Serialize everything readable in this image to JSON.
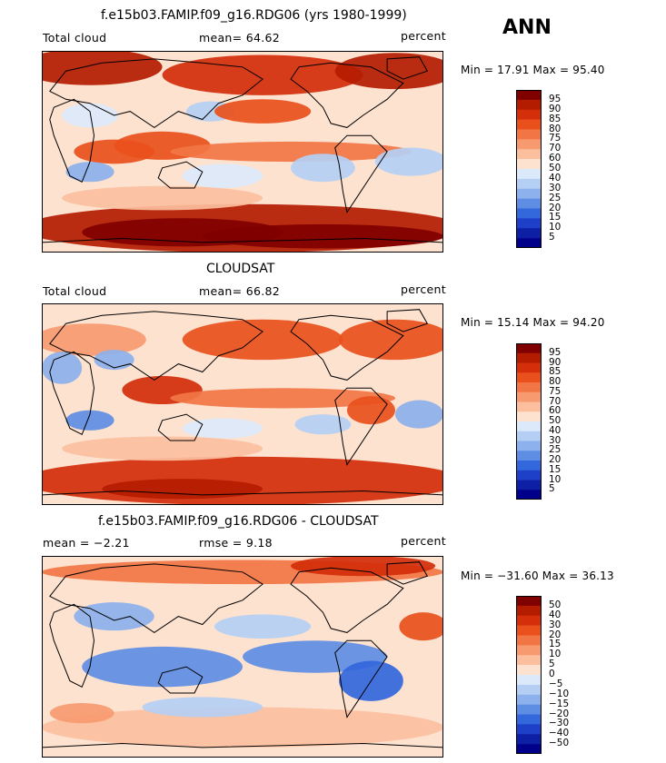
{
  "season_label": "ANN",
  "chart_data": [
    {
      "type": "heatmap",
      "title": "f.e15b03.FAMIP.f09_g16.RDG06 (yrs 1980-1999)",
      "variable": "Total cloud",
      "stat_text": "mean=   64.62",
      "units": "percent",
      "minmax_text": "Min =  17.91 Max =  95.40",
      "stats": {
        "mean": 64.62,
        "min": 17.91,
        "max": 95.4
      },
      "levels": [
        "95",
        "90",
        "85",
        "80",
        "75",
        "70",
        "60",
        "50",
        "40",
        "30",
        "25",
        "20",
        "15",
        "10",
        "5"
      ],
      "colors": [
        "#800000",
        "#b41c00",
        "#d42e0a",
        "#e9501c",
        "#f27645",
        "#f79a70",
        "#fbbf9e",
        "#fde2d0",
        "#dce9fb",
        "#b5cff4",
        "#8cb1ec",
        "#5e8ee3",
        "#3367dc",
        "#1e40c9",
        "#0d1fa5",
        "#00008a"
      ],
      "fields": [
        {
          "cx": 0.12,
          "cy": 0.08,
          "rx": 0.18,
          "ry": 0.09,
          "c": 1
        },
        {
          "cx": 0.55,
          "cy": 0.12,
          "rx": 0.25,
          "ry": 0.1,
          "c": 2
        },
        {
          "cx": 0.88,
          "cy": 0.1,
          "rx": 0.15,
          "ry": 0.09,
          "c": 1
        },
        {
          "cx": 0.5,
          "cy": 0.88,
          "rx": 0.55,
          "ry": 0.12,
          "c": 1
        },
        {
          "cx": 0.35,
          "cy": 0.9,
          "rx": 0.25,
          "ry": 0.07,
          "c": 0
        },
        {
          "cx": 0.7,
          "cy": 0.92,
          "rx": 0.3,
          "ry": 0.06,
          "c": 0
        },
        {
          "cx": 0.3,
          "cy": 0.47,
          "rx": 0.12,
          "ry": 0.07,
          "c": 3
        },
        {
          "cx": 0.62,
          "cy": 0.5,
          "rx": 0.3,
          "ry": 0.05,
          "c": 4
        },
        {
          "cx": 0.18,
          "cy": 0.5,
          "rx": 0.1,
          "ry": 0.06,
          "c": 3
        },
        {
          "cx": 0.7,
          "cy": 0.58,
          "rx": 0.08,
          "ry": 0.07,
          "c": 9
        },
        {
          "cx": 0.92,
          "cy": 0.55,
          "rx": 0.09,
          "ry": 0.07,
          "c": 9
        },
        {
          "cx": 0.12,
          "cy": 0.6,
          "rx": 0.06,
          "ry": 0.05,
          "c": 10
        },
        {
          "cx": 0.45,
          "cy": 0.62,
          "rx": 0.1,
          "ry": 0.06,
          "c": 8
        },
        {
          "cx": 0.42,
          "cy": 0.3,
          "rx": 0.06,
          "ry": 0.05,
          "c": 9
        },
        {
          "cx": 0.12,
          "cy": 0.32,
          "rx": 0.07,
          "ry": 0.06,
          "c": 8
        },
        {
          "cx": 0.55,
          "cy": 0.3,
          "rx": 0.12,
          "ry": 0.06,
          "c": 3
        },
        {
          "cx": 0.3,
          "cy": 0.73,
          "rx": 0.25,
          "ry": 0.06,
          "c": 6
        }
      ]
    },
    {
      "type": "heatmap",
      "title": "CLOUDSAT",
      "variable": "Total cloud",
      "stat_text": "mean=   66.82",
      "units": "percent",
      "minmax_text": "Min =  15.14 Max =  94.20",
      "stats": {
        "mean": 66.82,
        "min": 15.14,
        "max": 94.2
      },
      "levels": [
        "95",
        "90",
        "85",
        "80",
        "75",
        "70",
        "60",
        "50",
        "40",
        "30",
        "25",
        "20",
        "15",
        "10",
        "5"
      ],
      "colors": [
        "#800000",
        "#b41c00",
        "#d42e0a",
        "#e9501c",
        "#f27645",
        "#f79a70",
        "#fbbf9e",
        "#fde2d0",
        "#dce9fb",
        "#b5cff4",
        "#8cb1ec",
        "#5e8ee3",
        "#3367dc",
        "#1e40c9",
        "#0d1fa5",
        "#00008a"
      ],
      "fields": [
        {
          "cx": 0.55,
          "cy": 0.18,
          "rx": 0.2,
          "ry": 0.1,
          "c": 3
        },
        {
          "cx": 0.88,
          "cy": 0.18,
          "rx": 0.14,
          "ry": 0.1,
          "c": 3
        },
        {
          "cx": 0.12,
          "cy": 0.18,
          "rx": 0.14,
          "ry": 0.08,
          "c": 5
        },
        {
          "cx": 0.5,
          "cy": 0.88,
          "rx": 0.55,
          "ry": 0.12,
          "c": 2
        },
        {
          "cx": 0.35,
          "cy": 0.92,
          "rx": 0.2,
          "ry": 0.05,
          "c": 1
        },
        {
          "cx": 0.3,
          "cy": 0.43,
          "rx": 0.1,
          "ry": 0.07,
          "c": 2
        },
        {
          "cx": 0.6,
          "cy": 0.47,
          "rx": 0.28,
          "ry": 0.05,
          "c": 4
        },
        {
          "cx": 0.82,
          "cy": 0.53,
          "rx": 0.06,
          "ry": 0.07,
          "c": 3
        },
        {
          "cx": 0.05,
          "cy": 0.32,
          "rx": 0.05,
          "ry": 0.08,
          "c": 10
        },
        {
          "cx": 0.12,
          "cy": 0.58,
          "rx": 0.06,
          "ry": 0.05,
          "c": 11
        },
        {
          "cx": 0.94,
          "cy": 0.55,
          "rx": 0.06,
          "ry": 0.07,
          "c": 10
        },
        {
          "cx": 0.7,
          "cy": 0.6,
          "rx": 0.07,
          "ry": 0.05,
          "c": 9
        },
        {
          "cx": 0.18,
          "cy": 0.28,
          "rx": 0.05,
          "ry": 0.05,
          "c": 10
        },
        {
          "cx": 0.45,
          "cy": 0.62,
          "rx": 0.1,
          "ry": 0.05,
          "c": 8
        },
        {
          "cx": 0.3,
          "cy": 0.72,
          "rx": 0.25,
          "ry": 0.06,
          "c": 6
        }
      ]
    },
    {
      "type": "heatmap",
      "title": "f.e15b03.FAMIP.f09_g16.RDG06 - CLOUDSAT",
      "variable": "mean =   −2.21",
      "stat_text": "rmse =    9.18",
      "units": "percent",
      "minmax_text": "Min = −31.60 Max =  36.13",
      "stats": {
        "mean": -2.21,
        "rmse": 9.18,
        "min": -31.6,
        "max": 36.13
      },
      "levels": [
        "50",
        "40",
        "30",
        "20",
        "15",
        "10",
        "5",
        "0",
        "−5",
        "−10",
        "−15",
        "−20",
        "−30",
        "−40",
        "−50"
      ],
      "colors": [
        "#800000",
        "#b41c00",
        "#d42e0a",
        "#e9501c",
        "#f27645",
        "#f79a70",
        "#fbbf9e",
        "#fde2d0",
        "#dce9fb",
        "#b5cff4",
        "#8cb1ec",
        "#5e8ee3",
        "#3367dc",
        "#1e40c9",
        "#0d1fa5",
        "#00008a"
      ],
      "fields": [
        {
          "cx": 0.5,
          "cy": 0.08,
          "rx": 0.5,
          "ry": 0.06,
          "c": 4
        },
        {
          "cx": 0.8,
          "cy": 0.05,
          "rx": 0.18,
          "ry": 0.05,
          "c": 2
        },
        {
          "cx": 0.3,
          "cy": 0.55,
          "rx": 0.2,
          "ry": 0.1,
          "c": 11
        },
        {
          "cx": 0.68,
          "cy": 0.5,
          "rx": 0.18,
          "ry": 0.08,
          "c": 11
        },
        {
          "cx": 0.82,
          "cy": 0.62,
          "rx": 0.08,
          "ry": 0.1,
          "c": 12
        },
        {
          "cx": 0.18,
          "cy": 0.3,
          "rx": 0.1,
          "ry": 0.07,
          "c": 10
        },
        {
          "cx": 0.55,
          "cy": 0.35,
          "rx": 0.12,
          "ry": 0.06,
          "c": 9
        },
        {
          "cx": 0.95,
          "cy": 0.35,
          "rx": 0.06,
          "ry": 0.07,
          "c": 3
        },
        {
          "cx": 0.5,
          "cy": 0.85,
          "rx": 0.5,
          "ry": 0.1,
          "c": 6
        },
        {
          "cx": 0.4,
          "cy": 0.75,
          "rx": 0.15,
          "ry": 0.05,
          "c": 9
        },
        {
          "cx": 0.1,
          "cy": 0.78,
          "rx": 0.08,
          "ry": 0.05,
          "c": 5
        }
      ]
    }
  ]
}
